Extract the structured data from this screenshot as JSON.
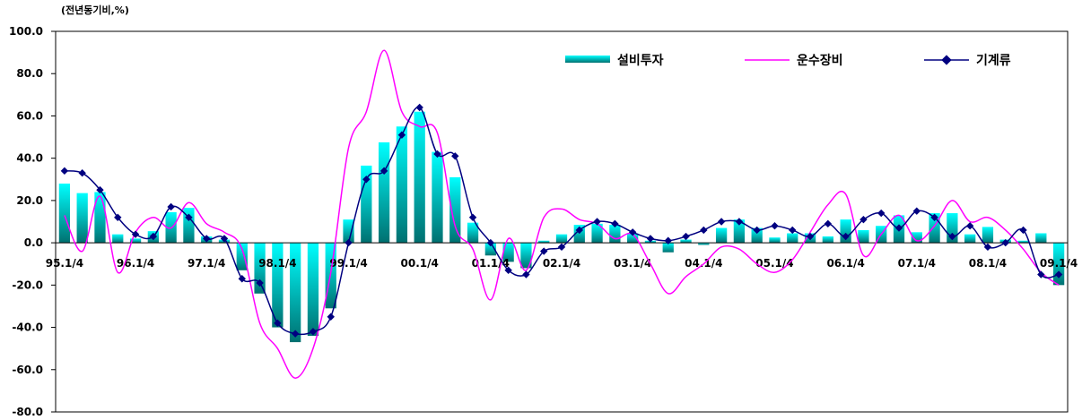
{
  "chart_data": {
    "type": "bar",
    "unit_label": "(전년동기비,%)",
    "ylim": [
      -80,
      100
    ],
    "y_ticks": [
      "100.0",
      "80.0",
      "60.0",
      "40.0",
      "20.0",
      "0.0",
      "-20.0",
      "-40.0",
      "-60.0",
      "-80.0"
    ],
    "y_tick_values": [
      100,
      80,
      60,
      40,
      20,
      0,
      -20,
      -40,
      -60,
      -80
    ],
    "categories": [
      "95.1/4",
      "95.2/4",
      "95.3/4",
      "95.4/4",
      "96.1/4",
      "96.2/4",
      "96.3/4",
      "96.4/4",
      "97.1/4",
      "97.2/4",
      "97.3/4",
      "97.4/4",
      "98.1/4",
      "98.2/4",
      "98.3/4",
      "98.4/4",
      "99.1/4",
      "99.2/4",
      "99.3/4",
      "99.4/4",
      "00.1/4",
      "00.2/4",
      "00.3/4",
      "00.4/4",
      "01.1/4",
      "01.2/4",
      "01.3/4",
      "01.4/4",
      "02.1/4",
      "02.2/4",
      "02.3/4",
      "02.4/4",
      "03.1/4",
      "03.2/4",
      "03.3/4",
      "03.4/4",
      "04.1/4",
      "04.2/4",
      "04.3/4",
      "04.4/4",
      "05.1/4",
      "05.2/4",
      "05.3/4",
      "05.4/4",
      "06.1/4",
      "06.2/4",
      "06.3/4",
      "06.4/4",
      "07.1/4",
      "07.2/4",
      "07.3/4",
      "07.4/4",
      "08.1/4",
      "08.2/4",
      "08.3/4",
      "08.4/4",
      "09.1/4"
    ],
    "x_tick_labels": [
      "95.1/4",
      "96.1/4",
      "97.1/4",
      "98.1/4",
      "99.1/4",
      "00.1/4",
      "01.1/4",
      "02.1/4",
      "03.1/4",
      "04.1/4",
      "05.1/4",
      "06.1/4",
      "07.1/4",
      "08.1/4",
      "09.1/4"
    ],
    "legend_placement": "top-right",
    "grid": false,
    "colors": {
      "bar_top": "#00ffff",
      "bar_bottom": "#007070",
      "line_pink": "#ff00ff",
      "line_navy": "#000080"
    },
    "series": [
      {
        "name": "설비투자",
        "type": "bar",
        "values": [
          28,
          23.5,
          24,
          4,
          2,
          5.5,
          14.5,
          16.5,
          3,
          1.5,
          -13,
          -24,
          -40,
          -47,
          -44,
          -31,
          11,
          36.5,
          47.5,
          55,
          62,
          43,
          31,
          9.5,
          -6,
          -9,
          -12,
          1,
          4,
          8.5,
          9,
          8.5,
          4.5,
          1,
          -4.5,
          1.5,
          -1,
          7,
          11,
          7,
          2.5,
          4.5,
          4.5,
          3,
          11,
          6,
          8,
          13,
          5,
          14,
          14,
          4,
          7.5,
          1.5,
          1,
          4.5,
          -20
        ]
      },
      {
        "name": "운수장비",
        "type": "line",
        "values": [
          13,
          -4,
          22,
          -14,
          5,
          12,
          7,
          19,
          9,
          5,
          -3,
          -38,
          -50,
          -64,
          -50,
          -14,
          45,
          62,
          91,
          62,
          55,
          52,
          8,
          -3,
          -27,
          2,
          -13,
          12,
          16,
          11,
          9,
          2,
          4,
          -10,
          -24,
          -16,
          -10,
          -2,
          -3,
          -10,
          -14,
          -8,
          5,
          18,
          23,
          -6,
          4,
          13,
          1,
          8,
          20,
          10,
          12,
          6,
          -3,
          -14,
          -20
        ]
      },
      {
        "name": "기계류",
        "type": "line",
        "values": [
          34,
          33,
          25,
          12,
          4,
          3,
          17,
          12,
          2,
          2,
          -17,
          -19,
          -38,
          -43,
          -42,
          -35,
          0,
          30,
          34,
          51,
          64,
          42,
          41,
          12,
          0,
          -13,
          -15,
          -4,
          -2,
          6,
          10,
          9,
          5,
          2,
          1,
          3,
          6,
          10,
          10,
          6,
          8,
          6,
          3,
          9,
          3,
          11,
          14,
          7,
          15,
          12,
          3,
          8,
          -2,
          0,
          6,
          -15,
          -15
        ]
      }
    ]
  }
}
